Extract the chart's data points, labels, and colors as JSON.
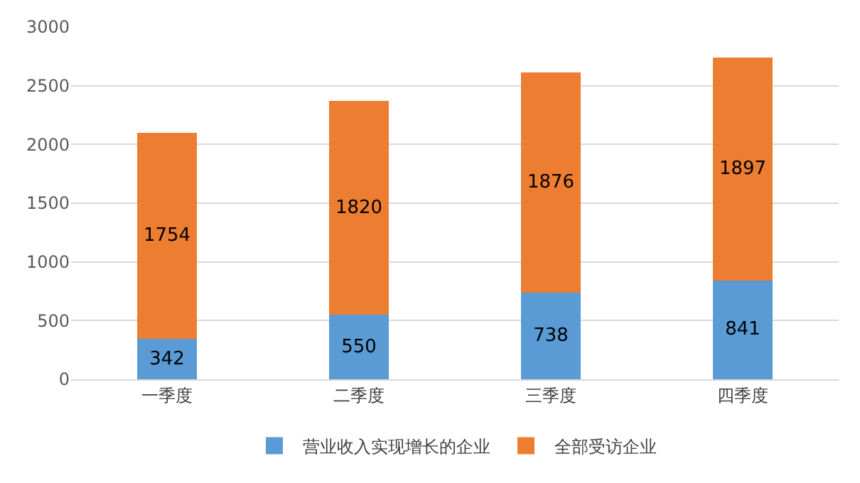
{
  "chart_data": {
    "type": "bar",
    "stacked": true,
    "data_labels": true,
    "grid": "y",
    "legend": "bottom",
    "categories": [
      "一季度",
      "二季度",
      "三季度",
      "四季度"
    ],
    "series": [
      {
        "name": "营业收入实现增长的企业",
        "color": "#5b9bd5",
        "values": [
          342,
          550,
          738,
          841
        ]
      },
      {
        "name": "全部受访企业",
        "color": "#ed7d31",
        "values": [
          1754,
          1820,
          1876,
          1897
        ]
      }
    ],
    "ylim": [
      0,
      3000
    ],
    "yticks": [
      0,
      500,
      1000,
      1500,
      2000,
      2500,
      3000
    ]
  }
}
